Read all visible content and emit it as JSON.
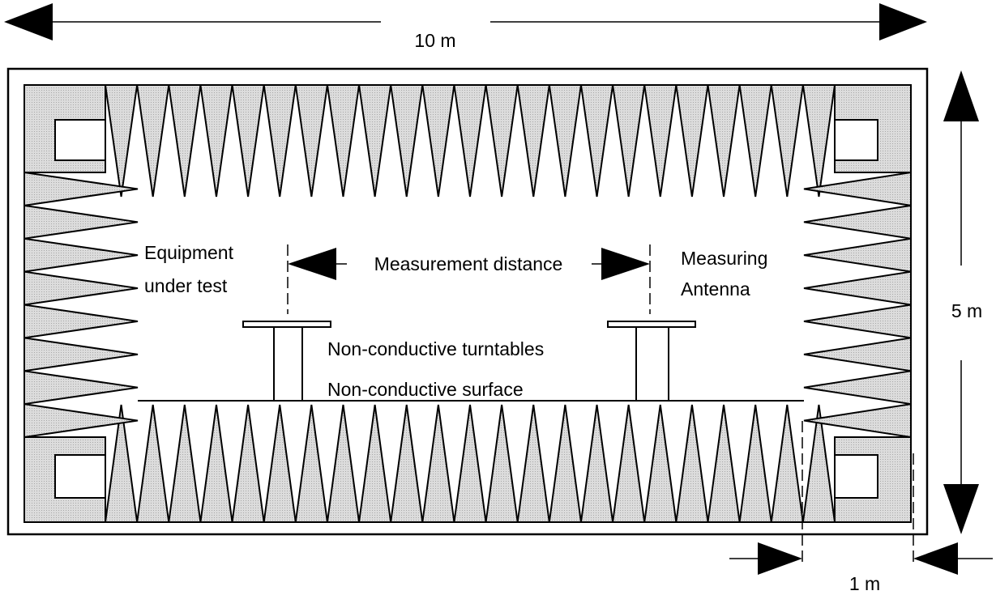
{
  "labels": {
    "width_dim": "10 m",
    "height_dim": "5 m",
    "absorber_dim": "1 m",
    "eut_line1": "Equipment",
    "eut_line2": "under test",
    "measurement": "Measurement distance",
    "antenna_line1": "Measuring",
    "antenna_line2": "Antenna",
    "turntables": "Non-conductive turntables",
    "surface": "Non-conductive surface"
  },
  "colors": {
    "absorber_fill": "#d9d9d9",
    "line": "#000000",
    "background": "#ffffff"
  }
}
